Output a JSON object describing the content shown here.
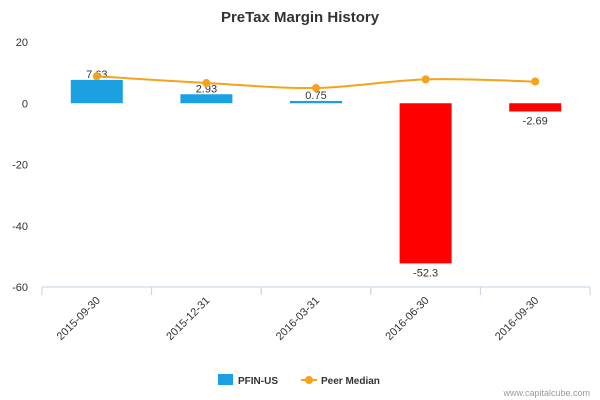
{
  "chart_data": {
    "type": "bar",
    "title": "PreTax Margin History",
    "categories": [
      "2015-09-30",
      "2015-12-31",
      "2016-03-31",
      "2016-06-30",
      "2016-09-30"
    ],
    "series": [
      {
        "name": "PFIN-US",
        "kind": "bar",
        "values": [
          7.63,
          2.93,
          0.75,
          -52.3,
          -2.69
        ],
        "labels": [
          "7.63",
          "2.93",
          "0.75",
          "-52.3",
          "-2.69"
        ],
        "color_positive": "#1ba1e2",
        "color_negative": "#ff0000"
      },
      {
        "name": "Peer Median",
        "kind": "line",
        "values": [
          8.8,
          6.6,
          5.0,
          7.8,
          7.1
        ],
        "color": "#f5a31a"
      }
    ],
    "yticks": [
      20,
      0,
      -20,
      -40,
      -60
    ],
    "ylim": [
      -60,
      20
    ],
    "xlabel": "",
    "ylabel": "",
    "grid": false,
    "legend": "bottom-center"
  },
  "credit": "www.capitalcube.com"
}
